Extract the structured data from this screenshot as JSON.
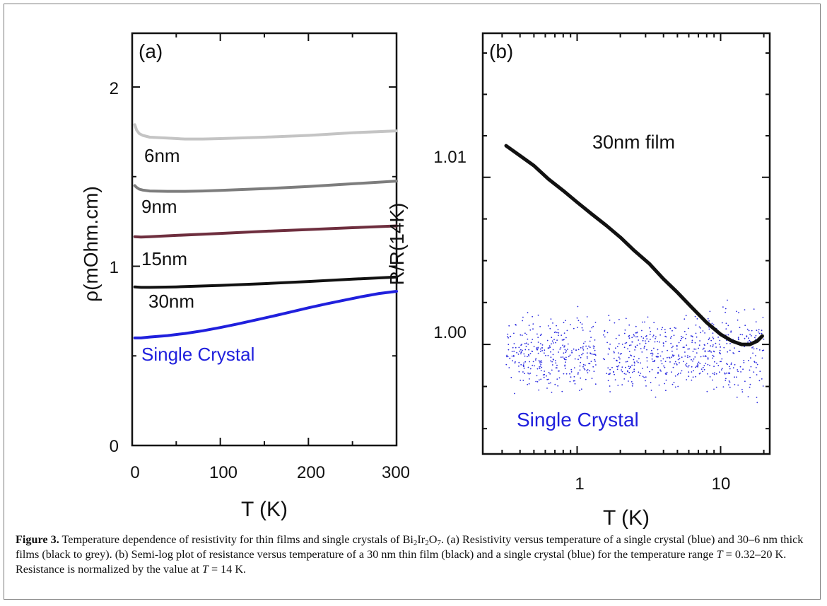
{
  "chart_data": [
    {
      "panel": "(a)",
      "type": "line",
      "xlabel": "T (K)",
      "ylabel": "ρ(mOhm.cm)",
      "xlim": [
        0,
        300
      ],
      "ylim": [
        0,
        2.3
      ],
      "xticks": [
        0,
        100,
        200,
        300
      ],
      "yticks": [
        0,
        1,
        2
      ],
      "series": [
        {
          "name": "6nm",
          "color": "#c4c4c4",
          "x": [
            3,
            5,
            8,
            12,
            20,
            40,
            60,
            80,
            100,
            150,
            200,
            250,
            300
          ],
          "y": [
            1.79,
            1.76,
            1.74,
            1.73,
            1.72,
            1.715,
            1.71,
            1.71,
            1.712,
            1.72,
            1.73,
            1.745,
            1.755
          ]
        },
        {
          "name": "9nm",
          "color": "#7d7d7d",
          "x": [
            3,
            5,
            8,
            12,
            20,
            40,
            60,
            80,
            100,
            150,
            200,
            250,
            300
          ],
          "y": [
            1.45,
            1.44,
            1.43,
            1.425,
            1.42,
            1.418,
            1.418,
            1.42,
            1.423,
            1.433,
            1.445,
            1.46,
            1.475
          ]
        },
        {
          "name": "15nm",
          "color": "#6e2e3e",
          "x": [
            3,
            10,
            20,
            50,
            100,
            150,
            200,
            250,
            300
          ],
          "y": [
            1.165,
            1.163,
            1.165,
            1.172,
            1.183,
            1.195,
            1.205,
            1.215,
            1.225
          ]
        },
        {
          "name": "30nm",
          "color": "#111111",
          "x": [
            3,
            10,
            20,
            50,
            100,
            150,
            200,
            250,
            300
          ],
          "y": [
            0.885,
            0.882,
            0.882,
            0.885,
            0.893,
            0.903,
            0.915,
            0.928,
            0.94
          ]
        },
        {
          "name": "Single Crystal",
          "color": "#2020dd",
          "x": [
            3,
            10,
            20,
            40,
            60,
            80,
            100,
            120,
            140,
            160,
            180,
            200,
            220,
            240,
            260,
            280,
            300
          ],
          "y": [
            0.6,
            0.6,
            0.605,
            0.613,
            0.625,
            0.64,
            0.658,
            0.678,
            0.7,
            0.722,
            0.745,
            0.768,
            0.79,
            0.81,
            0.83,
            0.848,
            0.86
          ]
        }
      ]
    },
    {
      "panel": "(b)",
      "type": "scatter",
      "xlabel": "T (K)",
      "ylabel": "R/R(14K)",
      "xscale": "log",
      "yscale": "log",
      "xlim": [
        0.22,
        22
      ],
      "ylim": [
        0.9935,
        1.0187
      ],
      "xticks": [
        1,
        10
      ],
      "yticks": [
        1.0,
        1.01
      ],
      "series": [
        {
          "name": "30nm film",
          "color": "#111111",
          "x": [
            0.32,
            0.4,
            0.5,
            0.63,
            0.8,
            1.0,
            1.26,
            1.6,
            2.0,
            2.5,
            3.2,
            4.0,
            5.0,
            6.3,
            8.0,
            10.0,
            12.0,
            14.0,
            16.0,
            18.0,
            19.5
          ],
          "y": [
            1.0119,
            1.0113,
            1.0107,
            1.0099,
            1.0092,
            1.0085,
            1.0078,
            1.0071,
            1.0064,
            1.0056,
            1.0048,
            1.0039,
            1.0031,
            1.0022,
            1.0013,
            1.0006,
            1.0002,
            1.0,
            1.0,
            1.0002,
            1.0005
          ]
        },
        {
          "name": "Single Crystal",
          "color": "#2a2ae0",
          "x_range": [
            0.32,
            20
          ],
          "y_center": 0.9995,
          "y_spread": [
            0.9965,
            1.0025
          ]
        }
      ]
    }
  ],
  "labels": {
    "panel_a": "(a)",
    "panel_b": "(b)",
    "a_6nm": "6nm",
    "a_9nm": "9nm",
    "a_15nm": "15nm",
    "a_30nm": "30nm",
    "a_single": "Single Crystal",
    "b_film": "30nm film",
    "b_single": "Single Crystal",
    "a_xlabel": "T (K)",
    "a_ylabel": "ρ(mOhm.cm)",
    "b_xlabel": "T (K)",
    "b_ylabel": "R/R(14K)",
    "a_xt0": "0",
    "a_xt1": "100",
    "a_xt2": "200",
    "a_xt3": "300",
    "a_yt0": "0",
    "a_yt1": "1",
    "a_yt2": "2",
    "b_xt0": "1",
    "b_xt1": "10",
    "b_yt0": "1.00",
    "b_yt1": "1.01"
  },
  "caption": {
    "fig": "Figure 3.",
    "t1": " Temperature dependence of resistivity for thin films and single crystals of Bi",
    "s1": "2",
    "t2": "Ir",
    "s2": "2",
    "t3": "O",
    "s3": "7",
    "t4": ". (a) Resistivity versus temperature of a single crystal (blue) and 30–6 nm thick films (black to grey). (b) Semi-log plot of resistance versus temperature of a 30 nm thin film (black) and a single crystal (blue) for the temperature range ",
    "T1": "T",
    "t5": " = 0.32–20 K. Resistance is normalized by the value at ",
    "T2": "T",
    "t6": " = 14 K."
  }
}
